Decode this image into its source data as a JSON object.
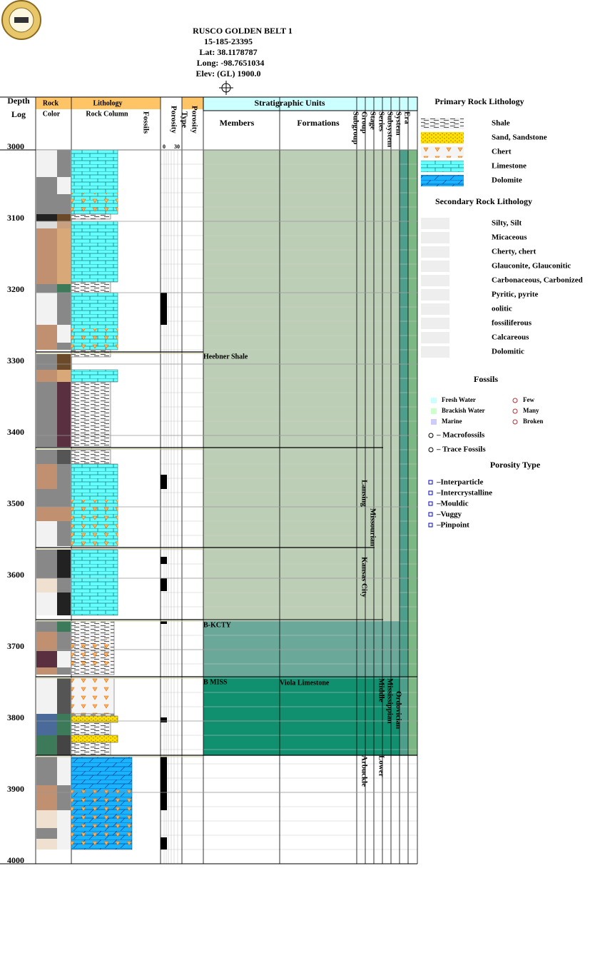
{
  "header": {
    "title": "RUSCO GOLDEN BELT 1",
    "api": "15-185-23395",
    "lat": "Lat: 38.1178787",
    "long": "Long: -98.7651034",
    "elev": "Elev: (GL) 1900.0"
  },
  "columns": {
    "depth": "Depth",
    "log": "Log",
    "rock": "Rock",
    "lithology": "Lithology",
    "color": "Color",
    "rock_column": "Rock Column",
    "fossils": "Fossils",
    "porosity": "Porosity",
    "porosity_min": "0",
    "porosity_max": "30",
    "porosity_type_1": "Type",
    "porosity_type_2": "Porosity"
  },
  "strat": {
    "title": "Stratigraphic Units",
    "members": "Members",
    "formations": "Formations",
    "subgroup": "Subgroup",
    "group": "Group",
    "stage": "Stage",
    "series": "Series",
    "subsystem": "Subsystem",
    "system": "System",
    "era": "Era"
  },
  "depth_axis": {
    "range": [
      3000,
      4000
    ],
    "ticks": [
      3000,
      3100,
      3200,
      3300,
      3400,
      3500,
      3600,
      3700,
      3800,
      3900,
      4000
    ]
  },
  "units": {
    "heebner": "Heebner Shale",
    "bkcty": "B-KCTY",
    "bmiss": "B MISS",
    "viola": "Viola Limestone",
    "lansing": "Lansing",
    "kansas_city": "Kansas City",
    "missourian": "Missourian",
    "mississippian": "Mississippian",
    "middle": "Middle",
    "ordovician": "Ordovician",
    "arbuckle": "Arbuckle",
    "lower": "Lower"
  },
  "legend": {
    "primary_title": "Primary Rock Lithology",
    "primary": [
      "Shale",
      "Sand, Sandstone",
      "Chert",
      "Limestone",
      "Dolomite"
    ],
    "secondary_title": "Secondary Rock Lithology",
    "secondary": [
      "Silty, Silt",
      "Micaceous",
      "Cherty, chert",
      "Glauconite, Glauconitic",
      "Carbonaceous, Carbonized",
      "Pyritic, pyrite",
      "oolitic",
      "fossiliferous",
      "Calcareous",
      "Dolomitic"
    ],
    "fossils_title": "Fossils",
    "water": [
      "Fresh Water",
      "Brackish Water",
      "Marine"
    ],
    "abundance": [
      "Few",
      "Many",
      "Broken"
    ],
    "fossil_types": [
      "– Macrofossils",
      "– Trace Fossils"
    ],
    "porosity_title": "Porosity Type",
    "porosity_types": [
      "–Interparticle",
      "–Intercrystalline",
      "–Mouldic",
      "–Vuggy",
      "–Pinpoint"
    ]
  }
}
